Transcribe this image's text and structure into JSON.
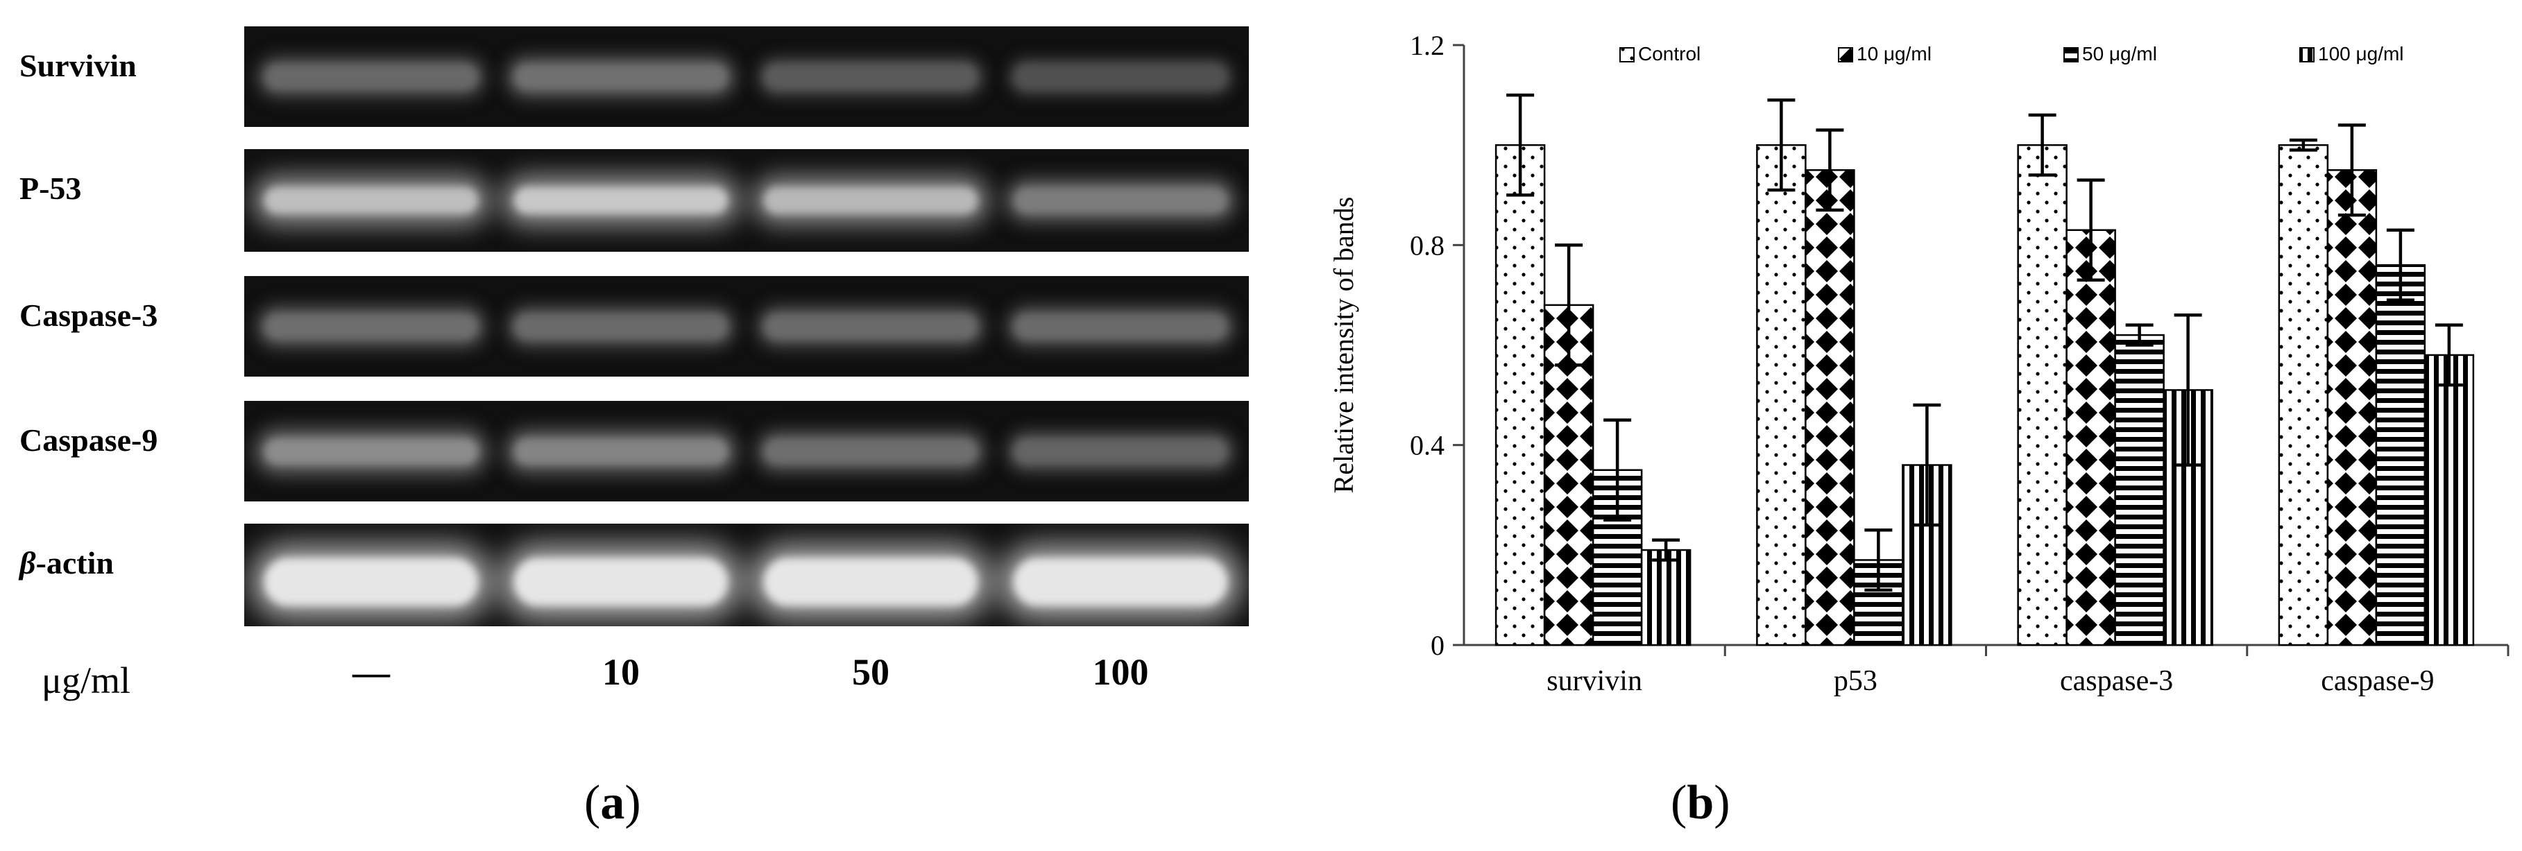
{
  "panel_a": {
    "rows": [
      {
        "label": "Survivin",
        "band_intensity": [
          0.32,
          0.36,
          0.25,
          0.2
        ]
      },
      {
        "label": "P-53",
        "band_intensity": [
          0.75,
          0.8,
          0.72,
          0.42
        ]
      },
      {
        "label": "Caspase-3",
        "band_intensity": [
          0.35,
          0.33,
          0.33,
          0.33
        ]
      },
      {
        "label": "Caspase-9",
        "band_intensity": [
          0.5,
          0.46,
          0.35,
          0.3
        ]
      },
      {
        "label_greek": "β",
        "label_rest": "-actin",
        "band_intensity": [
          0.95,
          0.95,
          0.95,
          0.95
        ]
      }
    ],
    "dose_unit": "μg/ml",
    "doses": [
      "—",
      "10",
      "50",
      "100"
    ],
    "panel_label": "a"
  },
  "panel_b": {
    "panel_label": "b"
  },
  "chart_data": {
    "type": "bar",
    "ylabel": "Relative intensity of bands",
    "xlabel": "",
    "ylim": [
      0,
      1.2
    ],
    "yticks": [
      "0",
      "0.4",
      "0.8",
      "1.2"
    ],
    "categories": [
      "survivin",
      "p53",
      "caspase-3",
      "caspase-9"
    ],
    "legend_position": "top",
    "series": [
      {
        "name": "Control",
        "pattern": "dots",
        "values": [
          1.0,
          1.0,
          1.0,
          1.0
        ],
        "errors": [
          0.1,
          0.09,
          0.06,
          0.01
        ]
      },
      {
        "name": "10 μg/ml",
        "pattern": "checker",
        "values": [
          0.68,
          0.95,
          0.83,
          0.95
        ],
        "errors": [
          0.12,
          0.08,
          0.1,
          0.09
        ]
      },
      {
        "name": "50 μg/ml",
        "pattern": "hstripes",
        "values": [
          0.35,
          0.17,
          0.62,
          0.76
        ],
        "errors": [
          0.1,
          0.06,
          0.02,
          0.07
        ]
      },
      {
        "name": "100 μg/ml",
        "pattern": "vstripes",
        "values": [
          0.19,
          0.36,
          0.51,
          0.58
        ],
        "errors": [
          0.02,
          0.12,
          0.15,
          0.06
        ]
      }
    ]
  }
}
